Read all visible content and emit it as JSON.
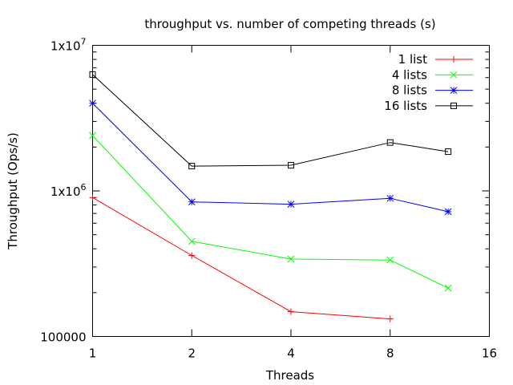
{
  "chart_data": {
    "type": "line",
    "title": "throughput vs. number of competing threads (s)",
    "xlabel": "Threads",
    "ylabel": "Throughput (Ops/s)",
    "x_scale": "log2",
    "y_scale": "log10",
    "xlim": [
      1,
      16
    ],
    "ylim": [
      100000,
      10000000
    ],
    "x_ticks": [
      1,
      2,
      4,
      8,
      16
    ],
    "x_tick_labels": [
      "1",
      "2",
      "4",
      "8",
      "16"
    ],
    "y_ticks": [
      100000,
      1000000,
      10000000
    ],
    "y_tick_labels": [
      {
        "base": "100000",
        "exp": ""
      },
      {
        "base": "1x10",
        "exp": "6"
      },
      {
        "base": "1x10",
        "exp": "7"
      }
    ],
    "legend_position": "top-right",
    "grid": false,
    "series": [
      {
        "name": "1 list",
        "color": "#ff0000",
        "marker": "plus",
        "x": [
          1,
          2,
          4,
          8
        ],
        "values": [
          900000,
          360000,
          148000,
          132000
        ]
      },
      {
        "name": "4 lists",
        "color": "#00ff00",
        "marker": "cross",
        "x": [
          1,
          2,
          4,
          8,
          12
        ],
        "values": [
          2400000,
          450000,
          340000,
          335000,
          215000
        ]
      },
      {
        "name": "8 lists",
        "color": "#0000ff",
        "marker": "star",
        "x": [
          1,
          2,
          4,
          8,
          12
        ],
        "values": [
          4000000,
          840000,
          810000,
          890000,
          720000
        ]
      },
      {
        "name": "16 lists",
        "color": "#000000",
        "marker": "box",
        "x": [
          1,
          2,
          4,
          8,
          12
        ],
        "values": [
          6300000,
          1480000,
          1500000,
          2150000,
          1860000
        ]
      }
    ]
  }
}
